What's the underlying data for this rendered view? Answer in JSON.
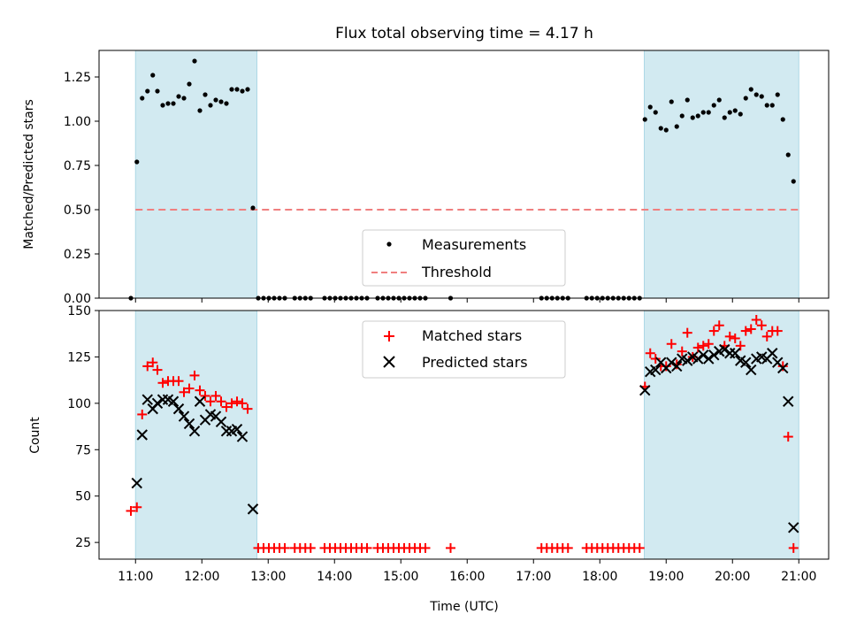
{
  "chart_data": [
    {
      "panel": "top",
      "type": "scatter",
      "title": "Flux total observing time = 4.17 h",
      "ylabel": "Matched/Predicted stars",
      "ylim": [
        0,
        1.4
      ],
      "yticks": [
        "0.00",
        "0.25",
        "0.50",
        "0.75",
        "1.00",
        "1.25"
      ],
      "yticks_values": [
        0,
        0.25,
        0.5,
        0.75,
        1.0,
        1.25
      ],
      "threshold": {
        "name": "Threshold",
        "value": 0.5,
        "x_range": [
          11.0,
          21.0
        ],
        "color": "#f07f7f"
      },
      "series": [
        {
          "name": "Measurements",
          "marker": "dot",
          "color": "#000000",
          "points": [
            [
              10.93,
              0.0
            ],
            [
              11.02,
              0.77
            ],
            [
              11.1,
              1.13
            ],
            [
              11.18,
              1.17
            ],
            [
              11.26,
              1.26
            ],
            [
              11.33,
              1.17
            ],
            [
              11.41,
              1.09
            ],
            [
              11.49,
              1.1
            ],
            [
              11.57,
              1.1
            ],
            [
              11.65,
              1.14
            ],
            [
              11.73,
              1.13
            ],
            [
              11.81,
              1.21
            ],
            [
              11.89,
              1.34
            ],
            [
              11.97,
              1.06
            ],
            [
              12.05,
              1.15
            ],
            [
              12.13,
              1.09
            ],
            [
              12.21,
              1.12
            ],
            [
              12.29,
              1.11
            ],
            [
              12.37,
              1.1
            ],
            [
              12.45,
              1.18
            ],
            [
              12.53,
              1.18
            ],
            [
              12.61,
              1.17
            ],
            [
              12.69,
              1.18
            ],
            [
              12.77,
              0.51
            ],
            [
              12.85,
              0.0
            ],
            [
              12.93,
              0.0
            ],
            [
              13.01,
              0.0
            ],
            [
              13.09,
              0.0
            ],
            [
              13.17,
              0.0
            ],
            [
              13.25,
              0.0
            ],
            [
              13.4,
              0.0
            ],
            [
              13.48,
              0.0
            ],
            [
              13.56,
              0.0
            ],
            [
              13.64,
              0.0
            ],
            [
              13.85,
              0.0
            ],
            [
              13.93,
              0.0
            ],
            [
              14.01,
              0.0
            ],
            [
              14.09,
              0.0
            ],
            [
              14.17,
              0.0
            ],
            [
              14.25,
              0.0
            ],
            [
              14.33,
              0.0
            ],
            [
              14.41,
              0.0
            ],
            [
              14.49,
              0.0
            ],
            [
              14.65,
              0.0
            ],
            [
              14.73,
              0.0
            ],
            [
              14.81,
              0.0
            ],
            [
              14.89,
              0.0
            ],
            [
              14.97,
              0.0
            ],
            [
              15.05,
              0.0
            ],
            [
              15.13,
              0.0
            ],
            [
              15.21,
              0.0
            ],
            [
              15.29,
              0.0
            ],
            [
              15.37,
              0.0
            ],
            [
              15.75,
              0.0
            ],
            [
              17.12,
              0.0
            ],
            [
              17.2,
              0.0
            ],
            [
              17.28,
              0.0
            ],
            [
              17.36,
              0.0
            ],
            [
              17.44,
              0.0
            ],
            [
              17.52,
              0.0
            ],
            [
              17.8,
              0.0
            ],
            [
              17.88,
              0.0
            ],
            [
              17.96,
              0.0
            ],
            [
              18.04,
              0.0
            ],
            [
              18.12,
              0.0
            ],
            [
              18.2,
              0.0
            ],
            [
              18.28,
              0.0
            ],
            [
              18.36,
              0.0
            ],
            [
              18.44,
              0.0
            ],
            [
              18.52,
              0.0
            ],
            [
              18.6,
              0.0
            ],
            [
              18.68,
              1.01
            ],
            [
              18.76,
              1.08
            ],
            [
              18.84,
              1.05
            ],
            [
              18.92,
              0.96
            ],
            [
              19.0,
              0.95
            ],
            [
              19.08,
              1.11
            ],
            [
              19.16,
              0.97
            ],
            [
              19.24,
              1.03
            ],
            [
              19.32,
              1.12
            ],
            [
              19.4,
              1.02
            ],
            [
              19.48,
              1.03
            ],
            [
              19.56,
              1.05
            ],
            [
              19.64,
              1.05
            ],
            [
              19.72,
              1.09
            ],
            [
              19.8,
              1.12
            ],
            [
              19.88,
              1.02
            ],
            [
              19.96,
              1.05
            ],
            [
              20.04,
              1.06
            ],
            [
              20.12,
              1.04
            ],
            [
              20.2,
              1.13
            ],
            [
              20.28,
              1.18
            ],
            [
              20.36,
              1.15
            ],
            [
              20.44,
              1.14
            ],
            [
              20.52,
              1.09
            ],
            [
              20.6,
              1.09
            ],
            [
              20.68,
              1.15
            ],
            [
              20.76,
              1.01
            ],
            [
              20.84,
              0.81
            ],
            [
              20.92,
              0.66
            ]
          ]
        }
      ],
      "legend": {
        "entries": [
          "Measurements",
          "Threshold"
        ],
        "placement": "lower-center"
      }
    },
    {
      "panel": "bottom",
      "type": "scatter",
      "xlabel": "Time (UTC)",
      "ylabel": "Count",
      "ylim": [
        16,
        150
      ],
      "yticks": [
        "25",
        "50",
        "75",
        "100",
        "125",
        "150"
      ],
      "yticks_values": [
        25,
        50,
        75,
        100,
        125,
        150
      ],
      "xlim": [
        10.45,
        21.45
      ],
      "xticks": [
        "11:00",
        "12:00",
        "13:00",
        "14:00",
        "15:00",
        "16:00",
        "17:00",
        "18:00",
        "19:00",
        "20:00",
        "21:00"
      ],
      "xticks_values": [
        11,
        12,
        13,
        14,
        15,
        16,
        17,
        18,
        19,
        20,
        21
      ],
      "series": [
        {
          "name": "Matched stars",
          "marker": "plus",
          "color": "#ff0000",
          "points": [
            [
              10.93,
              42
            ],
            [
              11.02,
              44
            ],
            [
              11.1,
              94
            ],
            [
              11.18,
              120
            ],
            [
              11.26,
              122
            ],
            [
              11.33,
              118
            ],
            [
              11.41,
              111
            ],
            [
              11.49,
              112
            ],
            [
              11.57,
              112
            ],
            [
              11.65,
              112
            ],
            [
              11.73,
              106
            ],
            [
              11.81,
              108
            ],
            [
              11.89,
              115
            ],
            [
              11.97,
              107
            ],
            [
              12.05,
              104
            ],
            [
              12.13,
              101
            ],
            [
              12.21,
              104
            ],
            [
              12.29,
              101
            ],
            [
              12.37,
              98
            ],
            [
              12.45,
              100
            ],
            [
              12.53,
              101
            ],
            [
              12.61,
              100
            ],
            [
              12.69,
              97
            ],
            [
              12.85,
              22
            ],
            [
              12.93,
              22
            ],
            [
              13.01,
              22
            ],
            [
              13.09,
              22
            ],
            [
              13.17,
              22
            ],
            [
              13.25,
              22
            ],
            [
              13.4,
              22
            ],
            [
              13.48,
              22
            ],
            [
              13.56,
              22
            ],
            [
              13.64,
              22
            ],
            [
              13.85,
              22
            ],
            [
              13.93,
              22
            ],
            [
              14.01,
              22
            ],
            [
              14.09,
              22
            ],
            [
              14.17,
              22
            ],
            [
              14.25,
              22
            ],
            [
              14.33,
              22
            ],
            [
              14.41,
              22
            ],
            [
              14.49,
              22
            ],
            [
              14.65,
              22
            ],
            [
              14.73,
              22
            ],
            [
              14.81,
              22
            ],
            [
              14.89,
              22
            ],
            [
              14.97,
              22
            ],
            [
              15.05,
              22
            ],
            [
              15.13,
              22
            ],
            [
              15.21,
              22
            ],
            [
              15.29,
              22
            ],
            [
              15.37,
              22
            ],
            [
              15.75,
              22
            ],
            [
              17.12,
              22
            ],
            [
              17.2,
              22
            ],
            [
              17.28,
              22
            ],
            [
              17.36,
              22
            ],
            [
              17.44,
              22
            ],
            [
              17.52,
              22
            ],
            [
              17.8,
              22
            ],
            [
              17.88,
              22
            ],
            [
              17.96,
              22
            ],
            [
              18.04,
              22
            ],
            [
              18.12,
              22
            ],
            [
              18.2,
              22
            ],
            [
              18.28,
              22
            ],
            [
              18.36,
              22
            ],
            [
              18.44,
              22
            ],
            [
              18.52,
              22
            ],
            [
              18.6,
              22
            ],
            [
              18.68,
              109
            ],
            [
              18.76,
              127
            ],
            [
              18.84,
              124
            ],
            [
              18.92,
              120
            ],
            [
              19.0,
              120
            ],
            [
              19.08,
              132
            ],
            [
              19.16,
              121
            ],
            [
              19.24,
              128
            ],
            [
              19.32,
              138
            ],
            [
              19.4,
              125
            ],
            [
              19.48,
              130
            ],
            [
              19.56,
              131
            ],
            [
              19.64,
              132
            ],
            [
              19.72,
              139
            ],
            [
              19.8,
              142
            ],
            [
              19.88,
              131
            ],
            [
              19.96,
              136
            ],
            [
              20.04,
              135
            ],
            [
              20.12,
              131
            ],
            [
              20.2,
              139
            ],
            [
              20.28,
              140
            ],
            [
              20.36,
              145
            ],
            [
              20.44,
              142
            ],
            [
              20.52,
              136
            ],
            [
              20.6,
              139
            ],
            [
              20.68,
              139
            ],
            [
              20.76,
              120
            ],
            [
              20.84,
              82
            ],
            [
              20.92,
              22
            ]
          ]
        },
        {
          "name": "Predicted stars",
          "marker": "x",
          "color": "#000000",
          "points": [
            [
              11.02,
              57
            ],
            [
              11.1,
              83
            ],
            [
              11.18,
              102
            ],
            [
              11.26,
              97
            ],
            [
              11.33,
              100
            ],
            [
              11.41,
              102
            ],
            [
              11.49,
              102
            ],
            [
              11.57,
              101
            ],
            [
              11.65,
              97
            ],
            [
              11.73,
              93
            ],
            [
              11.81,
              89
            ],
            [
              11.89,
              85
            ],
            [
              11.97,
              101
            ],
            [
              12.05,
              91
            ],
            [
              12.13,
              94
            ],
            [
              12.21,
              93
            ],
            [
              12.29,
              90
            ],
            [
              12.37,
              85
            ],
            [
              12.45,
              85
            ],
            [
              12.53,
              86
            ],
            [
              12.61,
              82
            ],
            [
              12.77,
              43
            ],
            [
              18.68,
              107
            ],
            [
              18.76,
              117
            ],
            [
              18.84,
              118
            ],
            [
              18.92,
              122
            ],
            [
              19.0,
              119
            ],
            [
              19.08,
              122
            ],
            [
              19.16,
              120
            ],
            [
              19.24,
              124
            ],
            [
              19.32,
              123
            ],
            [
              19.4,
              125
            ],
            [
              19.48,
              124
            ],
            [
              19.56,
              126
            ],
            [
              19.64,
              124
            ],
            [
              19.72,
              126
            ],
            [
              19.8,
              128
            ],
            [
              19.88,
              129
            ],
            [
              19.96,
              127
            ],
            [
              20.04,
              127
            ],
            [
              20.12,
              123
            ],
            [
              20.2,
              122
            ],
            [
              20.28,
              118
            ],
            [
              20.36,
              124
            ],
            [
              20.44,
              125
            ],
            [
              20.52,
              124
            ],
            [
              20.6,
              127
            ],
            [
              20.68,
              122
            ],
            [
              20.76,
              119
            ],
            [
              20.84,
              101
            ],
            [
              20.92,
              33
            ]
          ]
        }
      ],
      "legend": {
        "entries": [
          "Matched stars",
          "Predicted stars"
        ],
        "placement": "upper-center"
      }
    }
  ],
  "observing_windows": {
    "color": "#add8e6",
    "ranges": [
      [
        11.0,
        12.83
      ],
      [
        18.67,
        21.0
      ]
    ]
  }
}
